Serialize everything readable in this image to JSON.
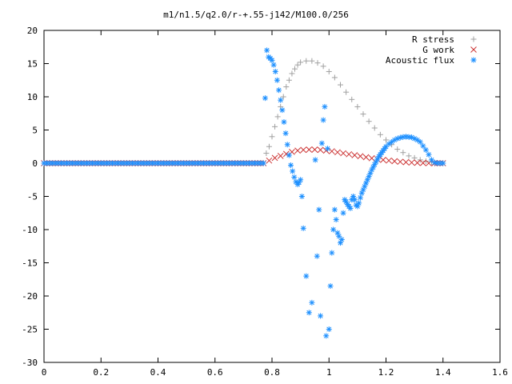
{
  "chart_data": {
    "type": "scatter",
    "title": "m1/n1.5/q2.0/r-+.55-j142/M100.0/256",
    "xlabel": "",
    "ylabel": "",
    "xlim": [
      0,
      1.6
    ],
    "ylim": [
      -30,
      20
    ],
    "xticks": [
      {
        "value": 0,
        "label": "0"
      },
      {
        "value": 0.2,
        "label": "0.2"
      },
      {
        "value": 0.4,
        "label": "0.4"
      },
      {
        "value": 0.6,
        "label": "0.6"
      },
      {
        "value": 0.8,
        "label": "0.8"
      },
      {
        "value": 1.0,
        "label": "1"
      },
      {
        "value": 1.2,
        "label": "1.2"
      },
      {
        "value": 1.4,
        "label": "1.4"
      },
      {
        "value": 1.6,
        "label": "1.6"
      }
    ],
    "yticks": [
      {
        "value": 20,
        "label": "20"
      },
      {
        "value": 15,
        "label": "15"
      },
      {
        "value": 10,
        "label": "10"
      },
      {
        "value": 5,
        "label": "5"
      },
      {
        "value": 0,
        "label": "0"
      },
      {
        "value": -5,
        "label": "-5"
      },
      {
        "value": -10,
        "label": "-10"
      },
      {
        "value": -15,
        "label": "-15"
      },
      {
        "value": -20,
        "label": "-20"
      },
      {
        "value": -25,
        "label": "-25"
      },
      {
        "value": -30,
        "label": "-30"
      }
    ],
    "grid": false,
    "legend_position": "top-right",
    "series": [
      {
        "name": "R stress",
        "marker": "plus",
        "color": "#a0a0a0",
        "points": [
          [
            0.0,
            0
          ],
          [
            0.05,
            0
          ],
          [
            0.1,
            0
          ],
          [
            0.15,
            0
          ],
          [
            0.2,
            0
          ],
          [
            0.25,
            0
          ],
          [
            0.3,
            0
          ],
          [
            0.35,
            0
          ],
          [
            0.4,
            0
          ],
          [
            0.45,
            0
          ],
          [
            0.5,
            0
          ],
          [
            0.55,
            0
          ],
          [
            0.6,
            0
          ],
          [
            0.65,
            0
          ],
          [
            0.7,
            0
          ],
          [
            0.74,
            0
          ],
          [
            0.77,
            0
          ],
          [
            0.78,
            1.5
          ],
          [
            0.79,
            2.5
          ],
          [
            0.8,
            4
          ],
          [
            0.81,
            5.5
          ],
          [
            0.82,
            7
          ],
          [
            0.83,
            8.5
          ],
          [
            0.84,
            10
          ],
          [
            0.85,
            11.5
          ],
          [
            0.86,
            12.5
          ],
          [
            0.87,
            13.5
          ],
          [
            0.88,
            14.2
          ],
          [
            0.89,
            14.8
          ],
          [
            0.9,
            15.2
          ],
          [
            0.92,
            15.4
          ],
          [
            0.94,
            15.4
          ],
          [
            0.96,
            15.1
          ],
          [
            0.98,
            14.6
          ],
          [
            1.0,
            13.8
          ],
          [
            1.02,
            12.9
          ],
          [
            1.04,
            11.8
          ],
          [
            1.06,
            10.7
          ],
          [
            1.08,
            9.6
          ],
          [
            1.1,
            8.5
          ],
          [
            1.12,
            7.4
          ],
          [
            1.14,
            6.3
          ],
          [
            1.16,
            5.3
          ],
          [
            1.18,
            4.3
          ],
          [
            1.2,
            3.5
          ],
          [
            1.22,
            2.8
          ],
          [
            1.24,
            2.1
          ],
          [
            1.26,
            1.6
          ],
          [
            1.28,
            1.1
          ],
          [
            1.3,
            0.8
          ],
          [
            1.32,
            0.5
          ],
          [
            1.34,
            0.3
          ],
          [
            1.36,
            0.15
          ],
          [
            1.38,
            0.05
          ],
          [
            1.4,
            0
          ]
        ]
      },
      {
        "name": "G work",
        "marker": "cross",
        "color": "#cc3333",
        "points": [
          [
            0.0,
            0
          ],
          [
            0.05,
            0
          ],
          [
            0.1,
            0
          ],
          [
            0.15,
            0
          ],
          [
            0.2,
            0
          ],
          [
            0.25,
            0
          ],
          [
            0.3,
            0
          ],
          [
            0.35,
            0
          ],
          [
            0.4,
            0
          ],
          [
            0.45,
            0
          ],
          [
            0.5,
            0
          ],
          [
            0.55,
            0
          ],
          [
            0.6,
            0
          ],
          [
            0.65,
            0
          ],
          [
            0.7,
            0
          ],
          [
            0.74,
            0
          ],
          [
            0.77,
            0
          ],
          [
            0.79,
            0.4
          ],
          [
            0.81,
            0.8
          ],
          [
            0.83,
            1.1
          ],
          [
            0.85,
            1.4
          ],
          [
            0.87,
            1.7
          ],
          [
            0.89,
            1.9
          ],
          [
            0.91,
            2.0
          ],
          [
            0.93,
            2.05
          ],
          [
            0.95,
            2.05
          ],
          [
            0.97,
            2.0
          ],
          [
            0.99,
            1.9
          ],
          [
            1.01,
            1.8
          ],
          [
            1.03,
            1.65
          ],
          [
            1.05,
            1.5
          ],
          [
            1.07,
            1.35
          ],
          [
            1.09,
            1.2
          ],
          [
            1.11,
            1.05
          ],
          [
            1.13,
            0.9
          ],
          [
            1.15,
            0.75
          ],
          [
            1.17,
            0.6
          ],
          [
            1.19,
            0.5
          ],
          [
            1.21,
            0.4
          ],
          [
            1.23,
            0.3
          ],
          [
            1.25,
            0.22
          ],
          [
            1.27,
            0.15
          ],
          [
            1.29,
            0.1
          ],
          [
            1.31,
            0.06
          ],
          [
            1.33,
            0.03
          ],
          [
            1.35,
            0.01
          ],
          [
            1.37,
            0
          ],
          [
            1.4,
            0
          ]
        ]
      },
      {
        "name": "Acoustic flux",
        "marker": "star",
        "color": "#1e90ff",
        "points": [
          [
            0.0,
            0
          ],
          [
            0.05,
            0
          ],
          [
            0.1,
            0
          ],
          [
            0.15,
            0
          ],
          [
            0.2,
            0
          ],
          [
            0.25,
            0
          ],
          [
            0.3,
            0
          ],
          [
            0.35,
            0
          ],
          [
            0.4,
            0
          ],
          [
            0.45,
            0
          ],
          [
            0.5,
            0
          ],
          [
            0.55,
            0
          ],
          [
            0.6,
            0
          ],
          [
            0.65,
            0
          ],
          [
            0.7,
            0
          ],
          [
            0.74,
            0
          ],
          [
            0.77,
            0
          ],
          [
            0.776,
            9.8
          ],
          [
            0.782,
            17
          ],
          [
            0.788,
            16
          ],
          [
            0.794,
            15.8
          ],
          [
            0.8,
            15.5
          ],
          [
            0.806,
            14.8
          ],
          [
            0.812,
            13.8
          ],
          [
            0.818,
            12.5
          ],
          [
            0.824,
            11
          ],
          [
            0.83,
            9.5
          ],
          [
            0.836,
            8
          ],
          [
            0.842,
            6.2
          ],
          [
            0.848,
            4.5
          ],
          [
            0.854,
            2.8
          ],
          [
            0.86,
            1.2
          ],
          [
            0.866,
            -0.3
          ],
          [
            0.872,
            -1.2
          ],
          [
            0.878,
            -2.1
          ],
          [
            0.884,
            -2.8
          ],
          [
            0.89,
            -3.2
          ],
          [
            0.895,
            -2.9
          ],
          [
            0.9,
            -2.5
          ],
          [
            0.905,
            -5
          ],
          [
            0.91,
            -9.8
          ],
          [
            0.92,
            -17
          ],
          [
            0.93,
            -22.5
          ],
          [
            0.94,
            -21
          ],
          [
            0.952,
            0.5
          ],
          [
            0.958,
            -14
          ],
          [
            0.965,
            -7
          ],
          [
            0.97,
            -23
          ],
          [
            0.975,
            3
          ],
          [
            0.98,
            6.5
          ],
          [
            0.985,
            8.5
          ],
          [
            0.99,
            -26
          ],
          [
            0.995,
            2.2
          ],
          [
            1.0,
            -25
          ],
          [
            1.005,
            -18.5
          ],
          [
            1.01,
            -13.5
          ],
          [
            1.015,
            -10
          ],
          [
            1.02,
            -7
          ],
          [
            1.025,
            -8.5
          ],
          [
            1.03,
            -10.5
          ],
          [
            1.035,
            -11
          ],
          [
            1.04,
            -12
          ],
          [
            1.045,
            -11.5
          ],
          [
            1.05,
            -7.5
          ],
          [
            1.055,
            -5.5
          ],
          [
            1.06,
            -5.8
          ],
          [
            1.065,
            -6.2
          ],
          [
            1.07,
            -6.5
          ],
          [
            1.075,
            -6.8
          ],
          [
            1.08,
            -5.5
          ],
          [
            1.085,
            -5
          ],
          [
            1.09,
            -5.5
          ],
          [
            1.095,
            -6.3
          ],
          [
            1.1,
            -6.5
          ],
          [
            1.105,
            -6
          ],
          [
            1.11,
            -5.2
          ],
          [
            1.115,
            -4.5
          ],
          [
            1.12,
            -4
          ],
          [
            1.125,
            -3.5
          ],
          [
            1.13,
            -3
          ],
          [
            1.135,
            -2.5
          ],
          [
            1.14,
            -2
          ],
          [
            1.145,
            -1.5
          ],
          [
            1.15,
            -1
          ],
          [
            1.155,
            -0.6
          ],
          [
            1.16,
            -0.2
          ],
          [
            1.165,
            0.2
          ],
          [
            1.17,
            0.6
          ],
          [
            1.175,
            1
          ],
          [
            1.18,
            1.3
          ],
          [
            1.185,
            1.6
          ],
          [
            1.19,
            1.9
          ],
          [
            1.195,
            2.2
          ],
          [
            1.2,
            2.5
          ],
          [
            1.21,
            2.9
          ],
          [
            1.22,
            3.2
          ],
          [
            1.23,
            3.5
          ],
          [
            1.24,
            3.7
          ],
          [
            1.25,
            3.85
          ],
          [
            1.26,
            3.95
          ],
          [
            1.27,
            4
          ],
          [
            1.28,
            3.95
          ],
          [
            1.29,
            3.9
          ],
          [
            1.3,
            3.7
          ],
          [
            1.31,
            3.5
          ],
          [
            1.32,
            3.2
          ],
          [
            1.33,
            2.6
          ],
          [
            1.34,
            2
          ],
          [
            1.35,
            1.3
          ],
          [
            1.36,
            0.5
          ],
          [
            1.37,
            0.1
          ],
          [
            1.38,
            0
          ],
          [
            1.4,
            0
          ]
        ]
      }
    ]
  }
}
